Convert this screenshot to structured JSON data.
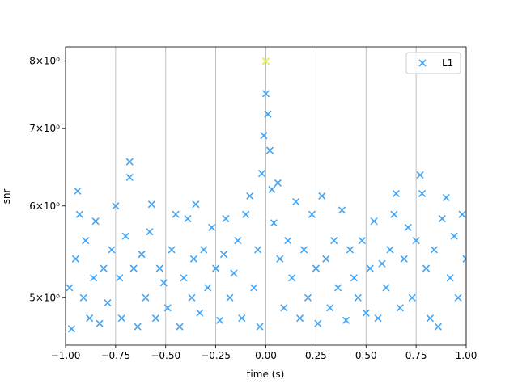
{
  "chart_data": {
    "type": "scatter",
    "x_label": "time (s)",
    "y_label": "snr",
    "xlim": [
      -1,
      1
    ],
    "ylim": [
      4.55,
      8.23
    ],
    "log_y": true,
    "grid": "x",
    "legend": "upper right",
    "xticks": [
      {
        "value": -1,
        "label": "−1.00"
      },
      {
        "value": -0.75,
        "label": "−0.75"
      },
      {
        "value": -0.5,
        "label": "−0.50"
      },
      {
        "value": -0.25,
        "label": "−0.25"
      },
      {
        "value": 0,
        "label": "0.00"
      },
      {
        "value": 0.25,
        "label": "0.25"
      },
      {
        "value": 0.5,
        "label": "0.50"
      },
      {
        "value": 0.75,
        "label": "0.75"
      },
      {
        "value": 1,
        "label": "1.00"
      }
    ],
    "yticks": [
      {
        "value": 5,
        "label": "5×10⁰"
      },
      {
        "value": 6,
        "label": "6×10⁰"
      },
      {
        "value": 7,
        "label": "7×10⁰"
      },
      {
        "value": 8,
        "label": "8×10⁰"
      }
    ],
    "series": [
      {
        "name": "L1",
        "color": "#42a5f5",
        "x": [
          -0.98,
          -0.97,
          -0.95,
          -0.94,
          -0.93,
          -0.91,
          -0.9,
          -0.88,
          -0.86,
          -0.85,
          -0.83,
          -0.81,
          -0.79,
          -0.77,
          -0.75,
          -0.73,
          -0.72,
          -0.7,
          -0.68,
          -0.68,
          -0.66,
          -0.64,
          -0.62,
          -0.6,
          -0.58,
          -0.57,
          -0.55,
          -0.53,
          -0.51,
          -0.49,
          -0.47,
          -0.45,
          -0.43,
          -0.41,
          -0.39,
          -0.37,
          -0.36,
          -0.35,
          -0.33,
          -0.31,
          -0.29,
          -0.27,
          -0.25,
          -0.23,
          -0.21,
          -0.2,
          -0.18,
          -0.16,
          -0.14,
          -0.12,
          -0.1,
          -0.08,
          -0.06,
          -0.04,
          -0.03,
          -0.02,
          -0.01,
          0,
          0,
          0.01,
          0.02,
          0.03,
          0.04,
          0.06,
          0.07,
          0.09,
          0.11,
          0.13,
          0.15,
          0.17,
          0.19,
          0.21,
          0.23,
          0.25,
          0.26,
          0.28,
          0.3,
          0.32,
          0.34,
          0.36,
          0.38,
          0.4,
          0.42,
          0.44,
          0.46,
          0.48,
          0.5,
          0.52,
          0.54,
          0.56,
          0.58,
          0.6,
          0.62,
          0.64,
          0.65,
          0.67,
          0.69,
          0.71,
          0.73,
          0.75,
          0.77,
          0.78,
          0.8,
          0.82,
          0.84,
          0.86,
          0.88,
          0.9,
          0.92,
          0.94,
          0.96,
          0.98,
          1
        ],
        "values": [
          5.1,
          4.7,
          5.4,
          6.18,
          5.9,
          5.0,
          5.6,
          4.8,
          5.2,
          5.82,
          4.75,
          5.3,
          4.95,
          5.5,
          6.0,
          5.2,
          4.8,
          5.65,
          6.55,
          6.35,
          5.3,
          4.72,
          5.45,
          5.0,
          5.7,
          6.02,
          4.8,
          5.3,
          5.15,
          4.9,
          5.5,
          5.9,
          4.72,
          5.2,
          5.85,
          5.0,
          5.4,
          6.02,
          4.85,
          5.5,
          5.1,
          5.75,
          5.3,
          4.78,
          5.45,
          5.85,
          5.0,
          5.25,
          5.6,
          4.8,
          5.9,
          6.12,
          5.1,
          5.5,
          4.72,
          6.4,
          6.9,
          7.5,
          8.0,
          7.2,
          6.7,
          6.2,
          5.8,
          6.28,
          5.4,
          4.9,
          5.6,
          5.2,
          6.05,
          4.8,
          5.5,
          5.0,
          5.9,
          5.3,
          4.75,
          6.12,
          5.4,
          4.9,
          5.6,
          5.1,
          5.95,
          4.78,
          5.5,
          5.2,
          5.0,
          5.6,
          4.85,
          5.3,
          5.82,
          4.8,
          5.35,
          5.1,
          5.5,
          5.9,
          6.15,
          4.9,
          5.4,
          5.75,
          5.0,
          5.6,
          6.38,
          6.15,
          5.3,
          4.8,
          5.5,
          4.72,
          5.85,
          6.1,
          5.2,
          5.65,
          5.0,
          5.9,
          5.4
        ]
      },
      {
        "color": "#f5f542",
        "x": [
          0
        ],
        "values": [
          8.0
        ]
      }
    ]
  }
}
